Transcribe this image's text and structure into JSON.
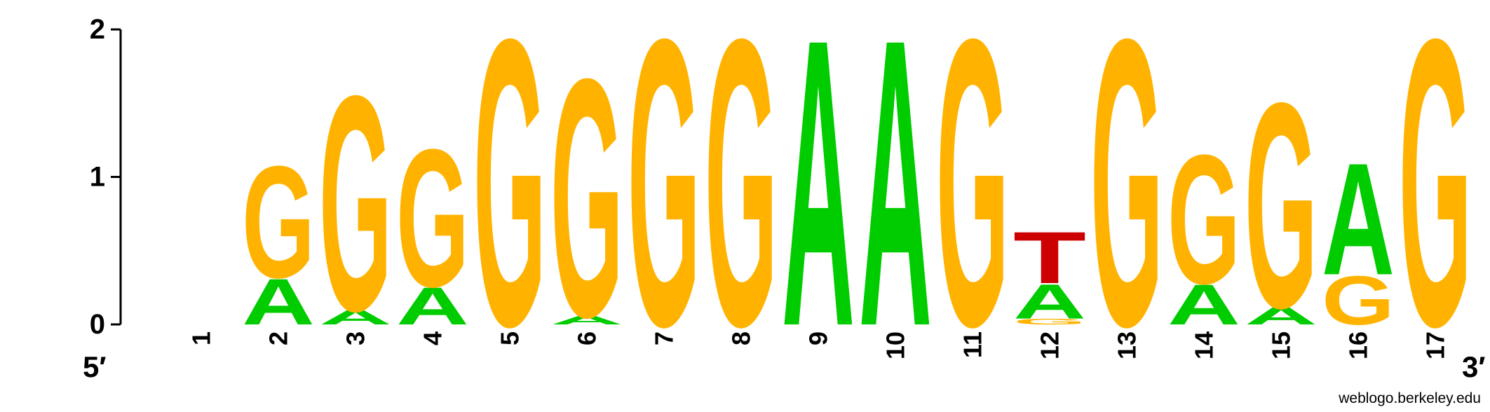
{
  "chart_data": {
    "type": "sequence-logo",
    "title": "",
    "xlabel": "",
    "ylabel": "",
    "ylim": [
      0,
      2
    ],
    "y_ticks": [
      "0",
      "1",
      "2"
    ],
    "end_labels": {
      "left": "5′",
      "right": "3′"
    },
    "positions": [
      {
        "label": "1",
        "letters": []
      },
      {
        "label": "2",
        "letters": [
          {
            "base": "A",
            "bits": 0.32
          },
          {
            "base": "G",
            "bits": 0.78
          }
        ]
      },
      {
        "label": "3",
        "letters": [
          {
            "base": "A",
            "bits": 0.1
          },
          {
            "base": "G",
            "bits": 1.5
          }
        ]
      },
      {
        "label": "4",
        "letters": [
          {
            "base": "A",
            "bits": 0.26
          },
          {
            "base": "G",
            "bits": 0.96
          }
        ]
      },
      {
        "label": "5",
        "letters": [
          {
            "base": "G",
            "bits": 2.0
          }
        ]
      },
      {
        "label": "6",
        "letters": [
          {
            "base": "A",
            "bits": 0.06
          },
          {
            "base": "G",
            "bits": 1.66
          }
        ]
      },
      {
        "label": "7",
        "letters": [
          {
            "base": "G",
            "bits": 2.0
          }
        ]
      },
      {
        "label": "8",
        "letters": [
          {
            "base": "G",
            "bits": 2.0
          }
        ]
      },
      {
        "label": "9",
        "letters": [
          {
            "base": "A",
            "bits": 2.0
          }
        ]
      },
      {
        "label": "10",
        "letters": [
          {
            "base": "A",
            "bits": 2.0
          }
        ]
      },
      {
        "label": "11",
        "letters": [
          {
            "base": "G",
            "bits": 2.0
          }
        ]
      },
      {
        "label": "12",
        "letters": [
          {
            "base": "G",
            "bits": 0.04
          },
          {
            "base": "A",
            "bits": 0.24
          },
          {
            "base": "T",
            "bits": 0.36
          }
        ]
      },
      {
        "label": "13",
        "letters": [
          {
            "base": "G",
            "bits": 2.0
          }
        ]
      },
      {
        "label": "14",
        "letters": [
          {
            "base": "A",
            "bits": 0.28
          },
          {
            "base": "G",
            "bits": 0.9
          }
        ]
      },
      {
        "label": "15",
        "letters": [
          {
            "base": "A",
            "bits": 0.12
          },
          {
            "base": "G",
            "bits": 1.43
          }
        ]
      },
      {
        "label": "16",
        "letters": [
          {
            "base": "G",
            "bits": 0.34
          },
          {
            "base": "A",
            "bits": 0.78
          }
        ]
      },
      {
        "label": "17",
        "letters": [
          {
            "base": "G",
            "bits": 2.0
          }
        ]
      }
    ],
    "colors": {
      "A": "#00cc00",
      "G": "#ffb300",
      "T": "#cc0000",
      "C": "#0000cc"
    },
    "credit": "weblogo.berkeley.edu"
  }
}
